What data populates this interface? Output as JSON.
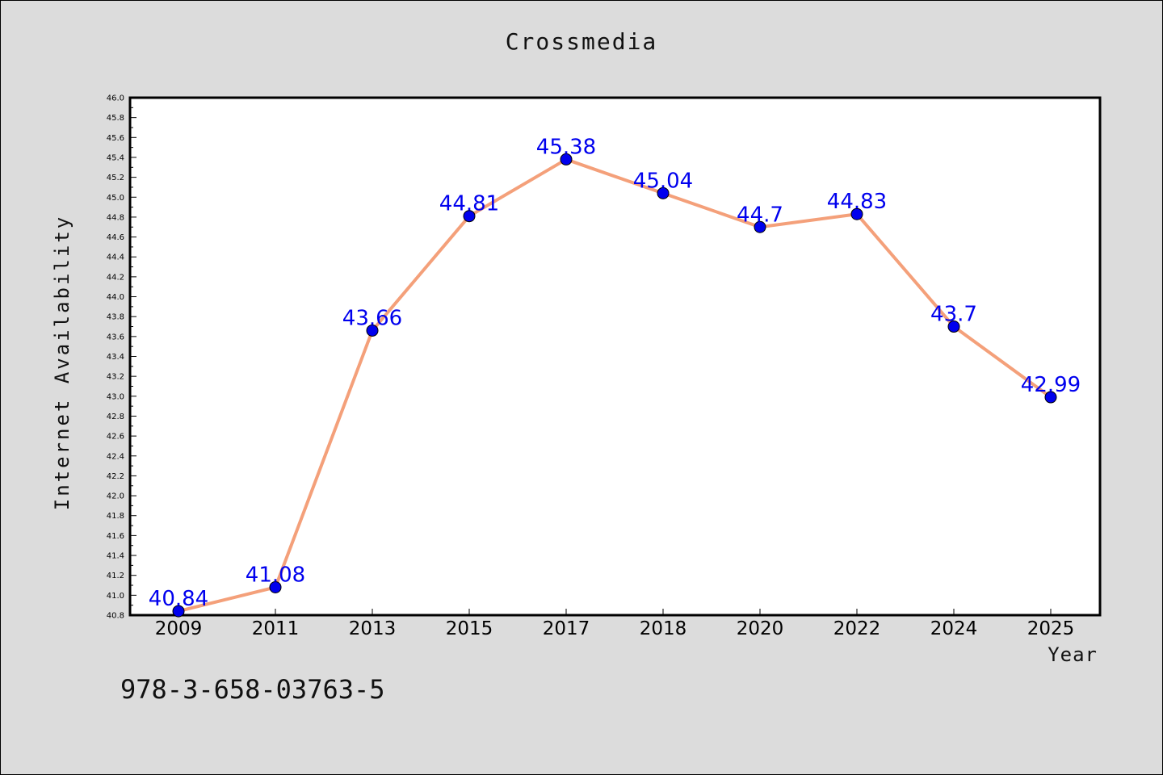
{
  "chart_data": {
    "type": "line",
    "title": "Crossmedia",
    "xlabel": "Year",
    "ylabel": "Internet Availability",
    "categories": [
      "2009",
      "2011",
      "2013",
      "2015",
      "2017",
      "2018",
      "2020",
      "2022",
      "2024",
      "2025"
    ],
    "series": [
      {
        "values": [
          40.84,
          41.08,
          43.66,
          44.81,
          45.38,
          45.04,
          44.7,
          44.83,
          43.7,
          42.99
        ],
        "labels": [
          "40.84",
          "41.08",
          "43.66",
          "44.81",
          "45.38",
          "45.04",
          "44.7",
          "44.83",
          "43.7",
          "42.99"
        ],
        "line_color": "#f4a07a",
        "marker_color": "#0000ee"
      }
    ],
    "ylim": [
      40.8,
      46.0
    ],
    "ytick_step": 0.2,
    "grid": false,
    "legend": "none"
  },
  "footer": {
    "isbn": "978-3-658-03763-5"
  },
  "colors": {
    "background": "#dcdcdc",
    "plot_background": "#ffffff"
  }
}
